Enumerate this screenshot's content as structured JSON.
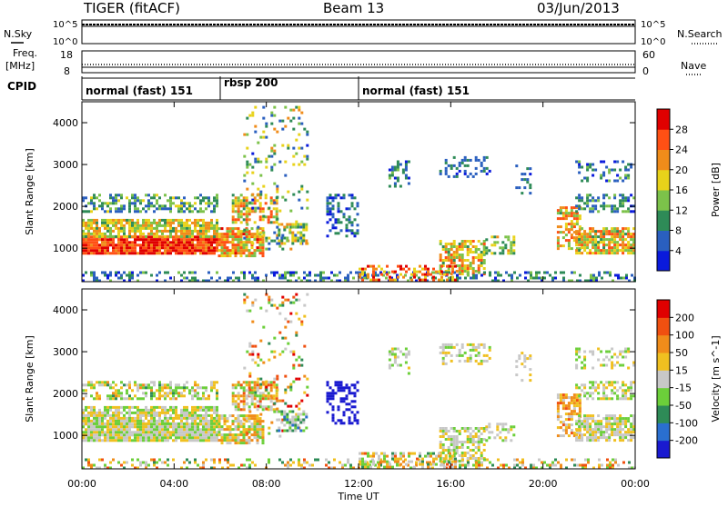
{
  "header": {
    "radar": "TIGER (fitACF)",
    "beam": "Beam 13",
    "date": "03/Jun/2013"
  },
  "left_labels": {
    "nsky": "N.Sky",
    "freq_top": "Freq.",
    "freq_unit": "[MHz]",
    "cpid": "CPID"
  },
  "right_labels": {
    "nsearch": "N.Search",
    "nave": "Nave"
  },
  "noise_ticks": {
    "left": [
      "10^5",
      "10^0"
    ],
    "right": [
      "10^5",
      "10^0"
    ]
  },
  "freq_ticks": {
    "left": [
      "18",
      "8"
    ],
    "right": [
      "60",
      "0"
    ]
  },
  "cpid_segments": [
    {
      "label": "normal (fast) 151",
      "start": 0,
      "end": 6
    },
    {
      "label": "rbsp 200",
      "start": 6,
      "end": 12
    },
    {
      "label": "normal (fast) 151",
      "start": 12,
      "end": 24
    }
  ],
  "chart_data": [
    {
      "type": "heatmap",
      "name": "power",
      "ylabel": "Slant Range [km]",
      "ylim": [
        200,
        4500
      ],
      "yticks": [
        1000,
        2000,
        3000,
        4000
      ],
      "xlim": [
        0,
        24
      ],
      "colorbar": {
        "label": "Power [dB]",
        "ticks": [
          "28",
          "24",
          "20",
          "16",
          "12",
          "8",
          "4"
        ],
        "colors": [
          "#0a1adc",
          "#2a5fbf",
          "#2e8b57",
          "#7cc24a",
          "#e8d21a",
          "#f08c1a",
          "#ff5014",
          "#e00000"
        ]
      }
    },
    {
      "type": "heatmap",
      "name": "velocity",
      "ylabel": "Slant Range [km]",
      "ylim": [
        200,
        4500
      ],
      "yticks": [
        1000,
        2000,
        3000,
        4000
      ],
      "xlim": [
        0,
        24
      ],
      "colorbar": {
        "label": "Velocity [m s^-1]",
        "ticks": [
          "200",
          "100",
          "50",
          "15",
          "-15",
          "-50",
          "-100",
          "-200"
        ],
        "colors": [
          "#1a1ad0",
          "#2a6fd0",
          "#2e8b57",
          "#6ccf3a",
          "#c8c8c8",
          "#f0c020",
          "#f08c1a",
          "#f05010",
          "#e00000"
        ]
      }
    }
  ],
  "xaxis": {
    "ticks": [
      "00:00",
      "04:00",
      "08:00",
      "12:00",
      "16:00",
      "20:00",
      "00:00"
    ],
    "label": "Time UT"
  }
}
